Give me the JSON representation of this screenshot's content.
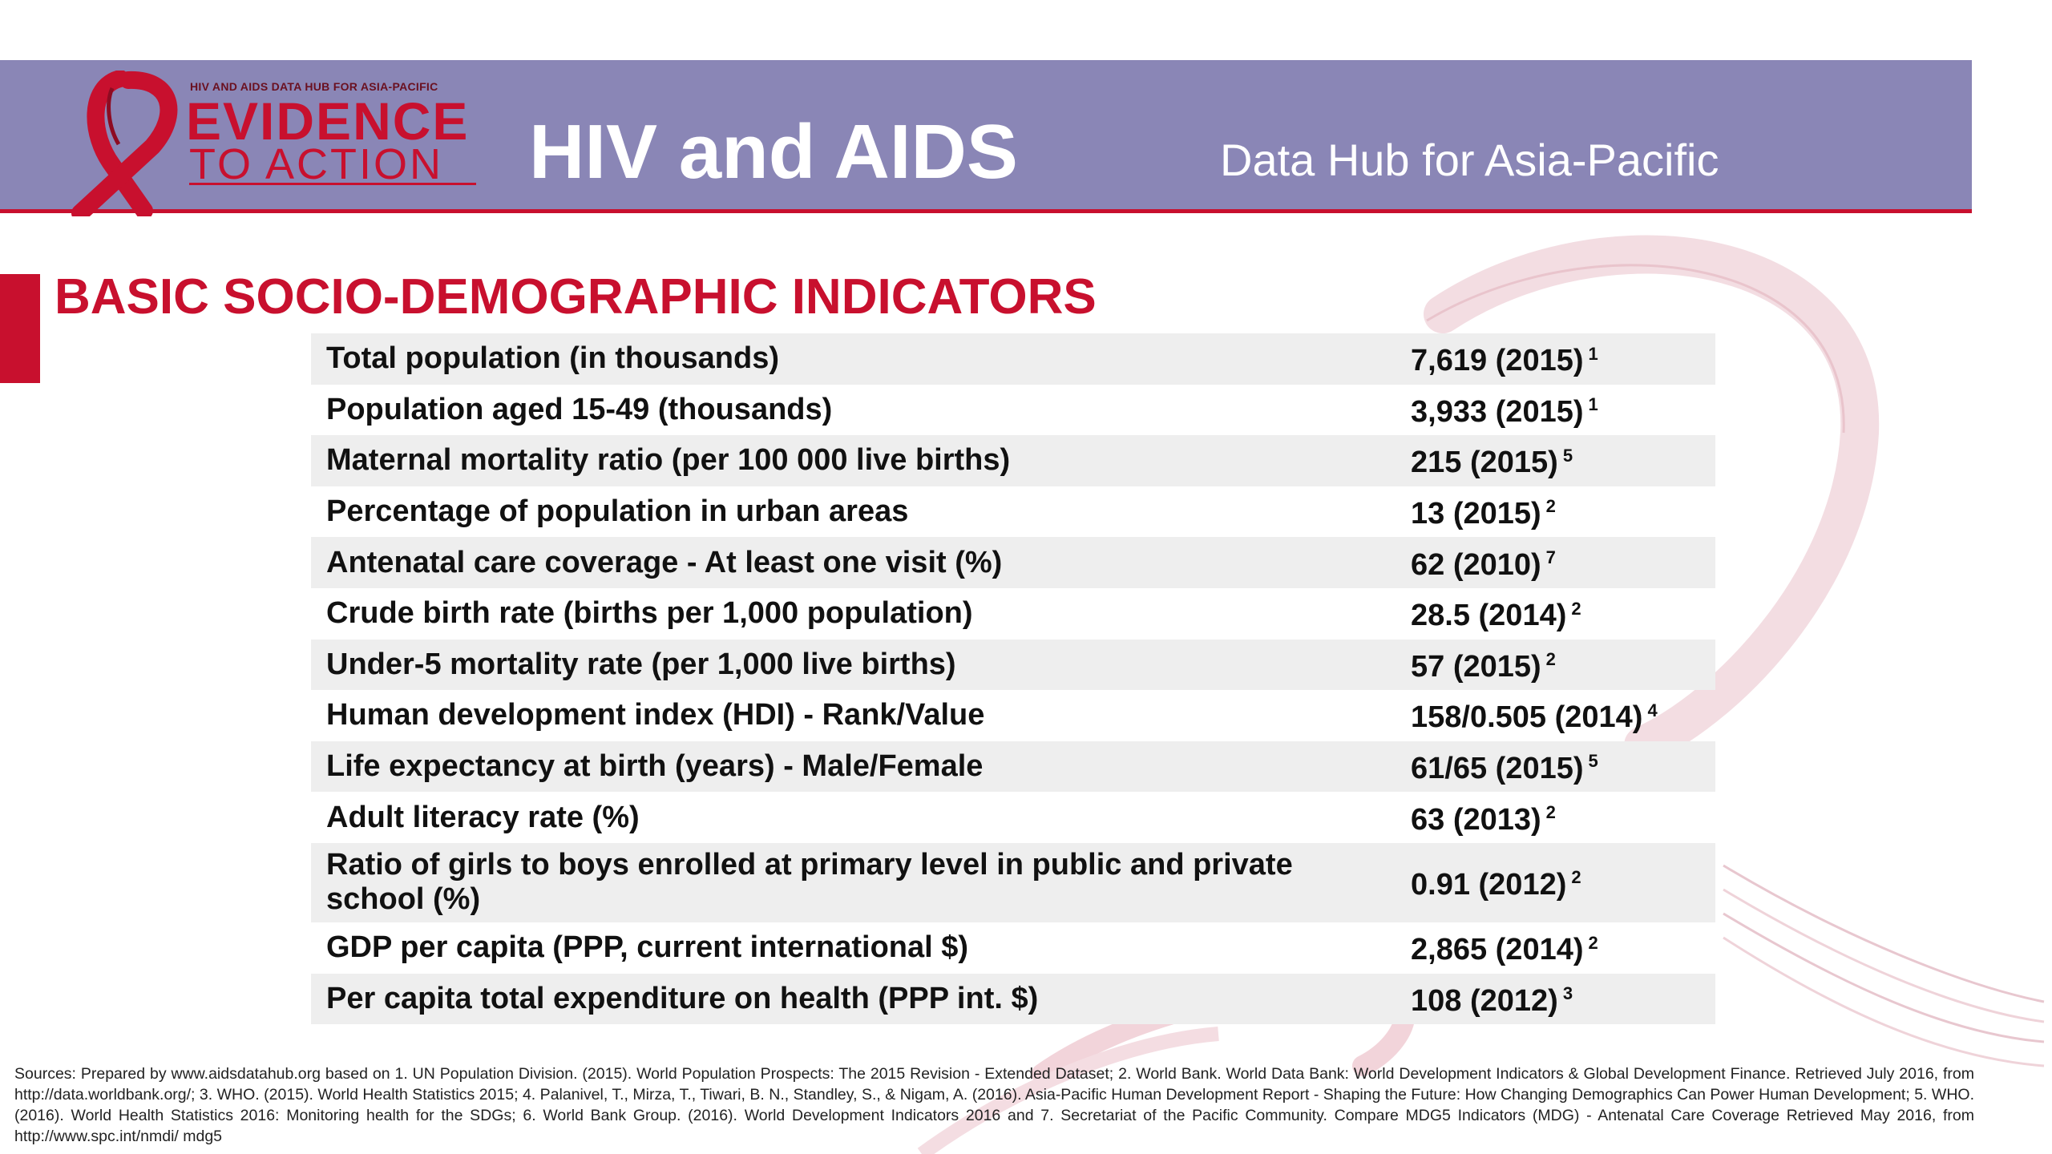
{
  "header": {
    "logo_small_text": "HIV AND AIDS DATA HUB FOR ASIA-PACIFIC",
    "logo_evidence": "EVIDENCE",
    "logo_to_action": "TO ACTION",
    "title": "HIV and AIDS",
    "subtitle": "Data Hub for Asia-Pacific",
    "banner_color": "#8a86b6",
    "accent_color": "#c8102e"
  },
  "section": {
    "title": "BASIC SOCIO-DEMOGRAPHIC INDICATORS"
  },
  "indicators": [
    {
      "label": "Total population (in thousands)",
      "value": "7,619 (2015)",
      "source": "1"
    },
    {
      "label": "Population aged 15-49 (thousands)",
      "value": "3,933 (2015)",
      "source": "1"
    },
    {
      "label": "Maternal mortality ratio (per 100 000 live births)",
      "value": "215 (2015)",
      "source": "5"
    },
    {
      "label": "Percentage of population in urban areas",
      "value": "13 (2015)",
      "source": "2"
    },
    {
      "label": "Antenatal care coverage -  At least one visit (%)",
      "value": "62 (2010)",
      "source": "7"
    },
    {
      "label": "Crude birth rate (births per 1,000 population)",
      "value": "28.5 (2014)",
      "source": "2"
    },
    {
      "label": "Under-5 mortality rate (per 1,000 live births)",
      "value": "57 (2015)",
      "source": "2"
    },
    {
      "label": "Human development index (HDI) - Rank/Value",
      "value": "158/0.505 (2014)",
      "source": "4"
    },
    {
      "label": "Life expectancy at birth (years) - Male/Female",
      "value": "61/65 (2015)",
      "source": "5"
    },
    {
      "label": "Adult literacy rate (%)",
      "value": "63 (2013)",
      "source": "2"
    },
    {
      "label": "Ratio of girls to boys enrolled at primary level in public and private school (%)",
      "value": "0.91 (2012)",
      "source": "2"
    },
    {
      "label": "GDP per capita (PPP, current international $)",
      "value": "2,865 (2014)",
      "source": "2"
    },
    {
      "label": "Per capita total expenditure on health (PPP int. $)",
      "value": "108 (2012)",
      "source": "3"
    }
  ],
  "footer": {
    "sources": "Sources: Prepared by www.aidsdatahub.org based on 1. UN Population Division. (2015). World Population Prospects: The 2015 Revision - Extended Dataset; 2.  World Bank. World Data Bank: World Development Indicators & Global Development Finance. Retrieved July 2016, from http://data.worldbank.org/; 3. WHO. (2015). World Health Statistics 2015; 4. Palanivel, T., Mirza, T., Tiwari, B. N., Standley, S., & Nigam, A. (2016). Asia-Pacific Human Development Report - Shaping the Future: How Changing Demographics Can Power Human Development; 5. WHO. (2016). World Health Statistics 2016: Monitoring health for the SDGs; 6. World Bank Group. (2016). World Development Indicators 2016 and 7. Secretariat of the Pacific Community. Compare MDG5 Indicators (MDG) - Antenatal Care Coverage  Retrieved May 2016, from http://www.spc.int/nmdi/ mdg5"
  }
}
